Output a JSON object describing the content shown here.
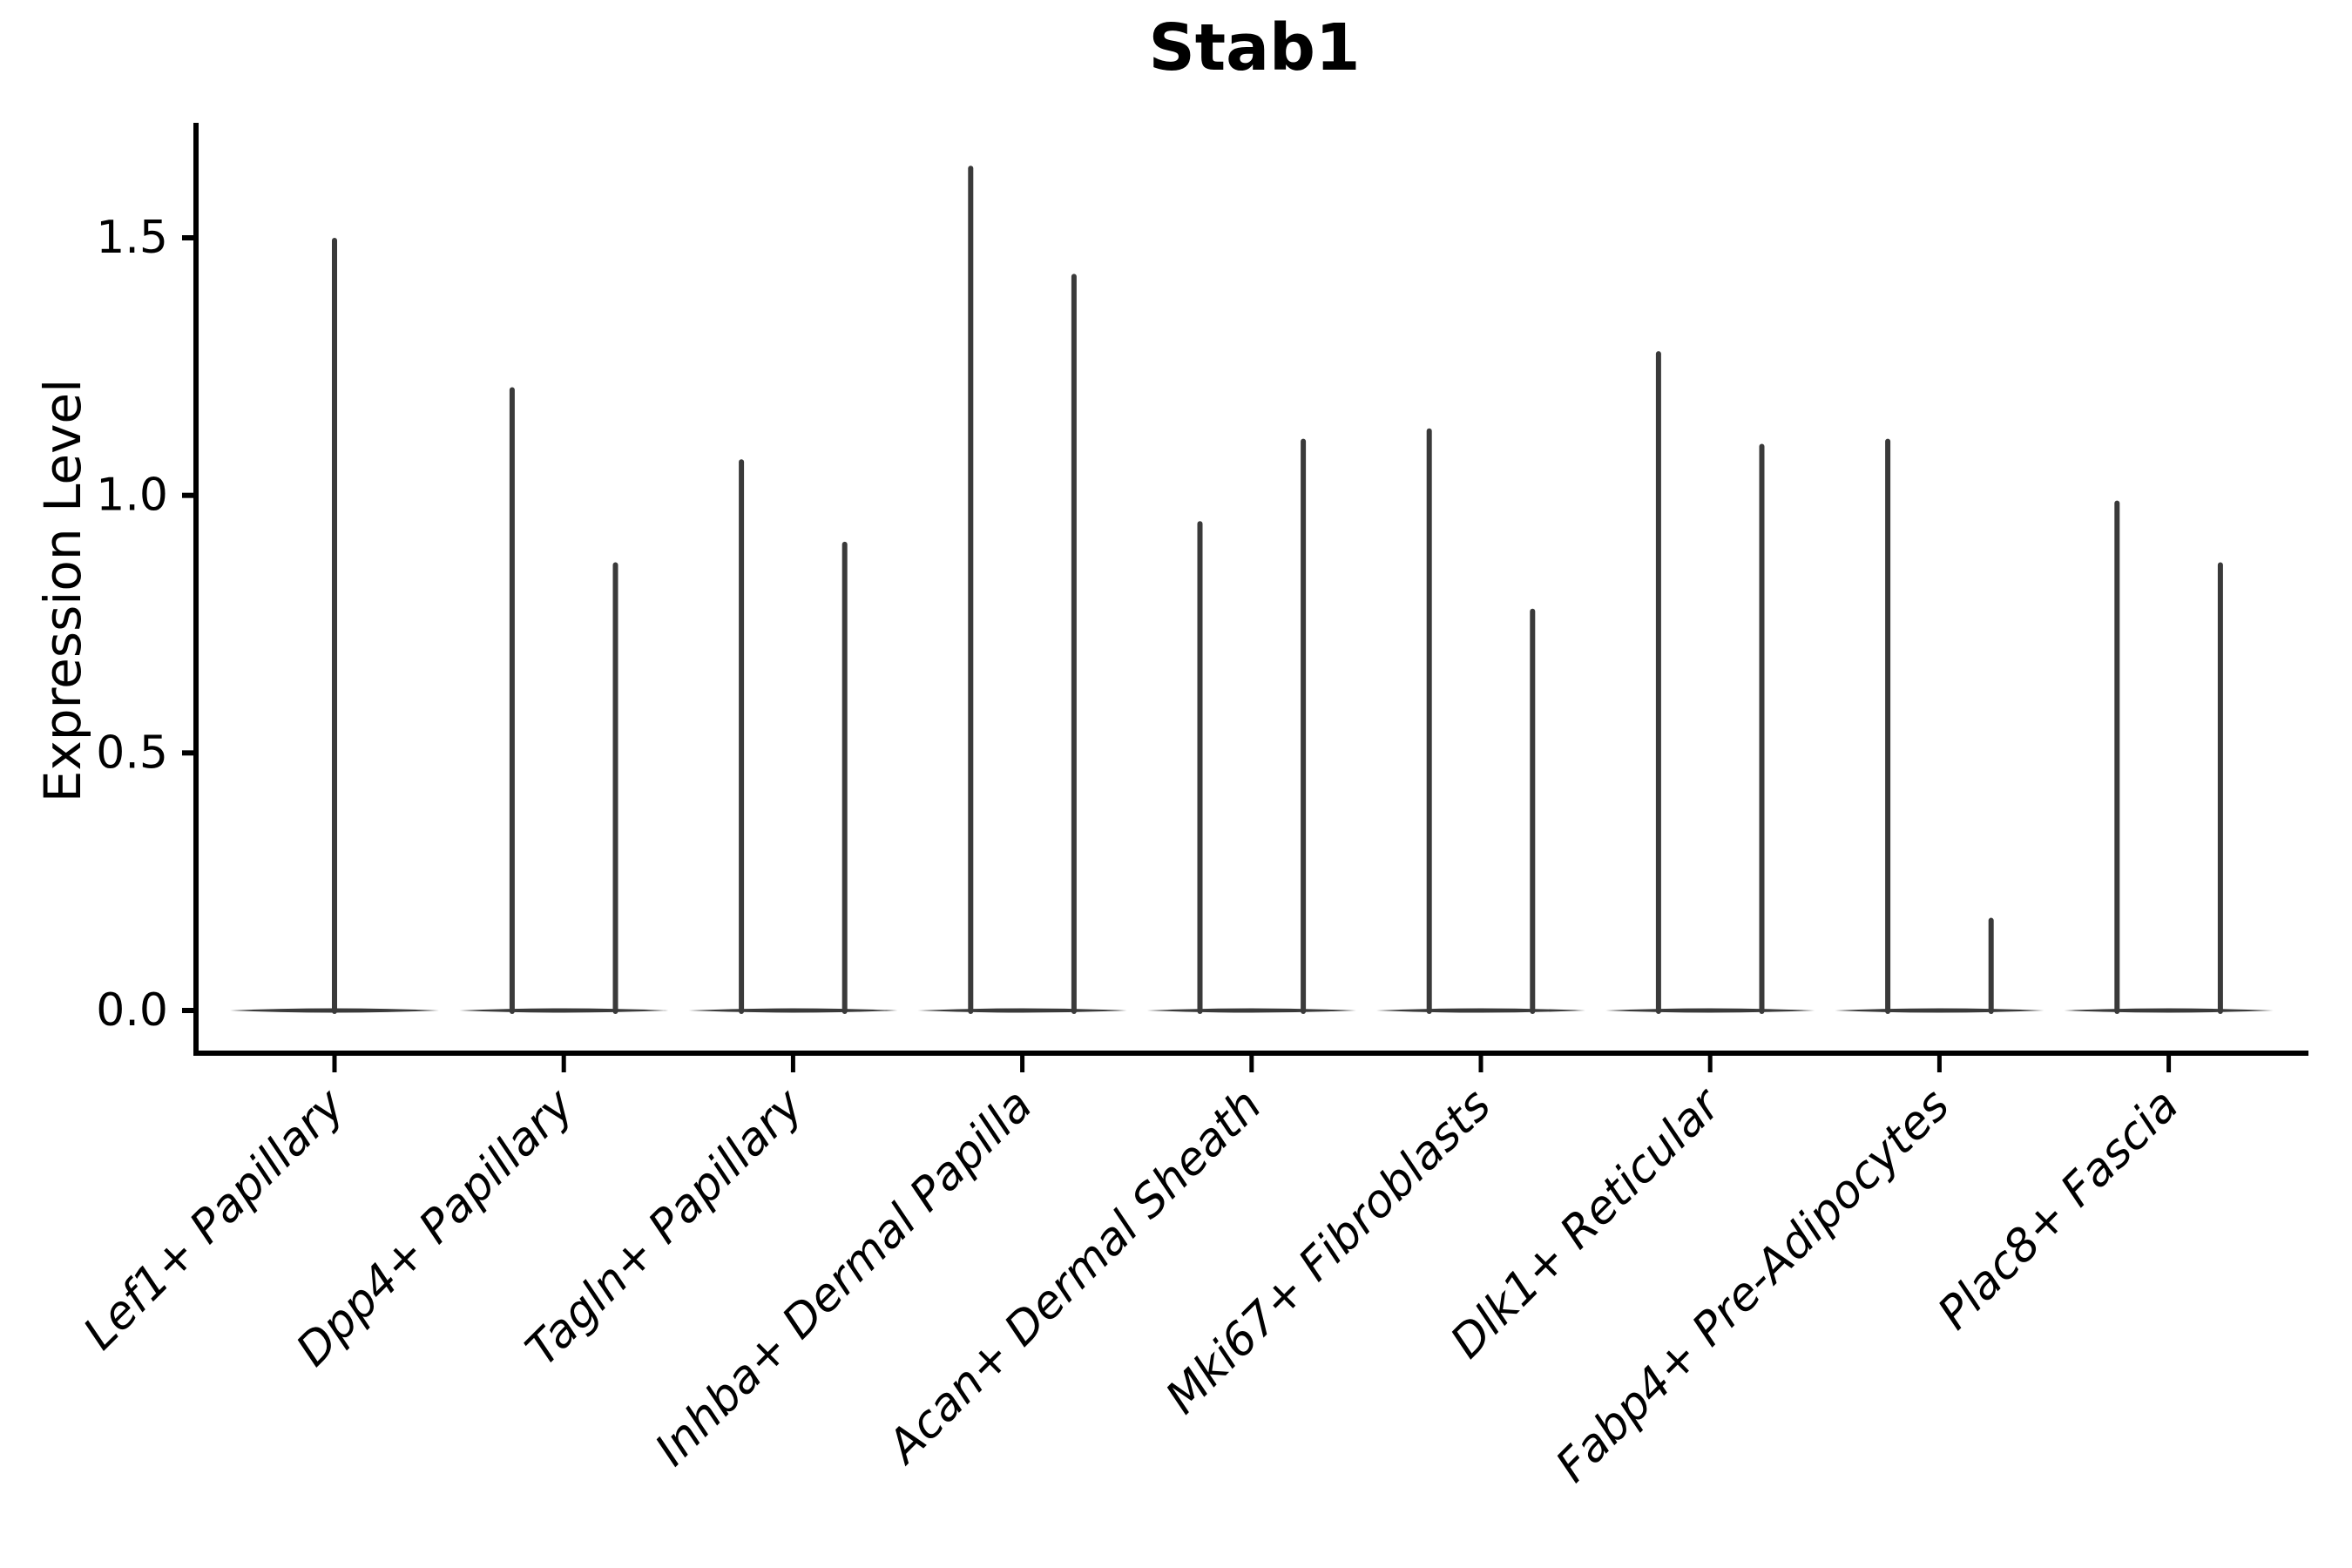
{
  "chart_data": {
    "type": "violin",
    "title": "Stab1",
    "ylabel": "Expression Level",
    "xlabel": "",
    "categories": [
      "Lef1+ Papillary",
      "Dpp4+ Papillary",
      "Tagln+ Papillary",
      "Inhba+ Dermal Papilla",
      "Acan+ Dermal Sheath",
      "Mki67+ Fibroblasts",
      "Dlk1+ Reticular",
      "Fabp4+ Pre-Adipocytes",
      "Plac8+ Fascia"
    ],
    "groups": [
      {
        "category": "Lef1+ Papillary",
        "violin_maxima": [
          1.5
        ]
      },
      {
        "category": "Dpp4+ Papillary",
        "violin_maxima": [
          1.21,
          0.87
        ]
      },
      {
        "category": "Tagln+ Papillary",
        "violin_maxima": [
          1.07,
          0.91
        ]
      },
      {
        "category": "Inhba+ Dermal Papilla",
        "violin_maxima": [
          1.64,
          1.43
        ]
      },
      {
        "category": "Acan+ Dermal Sheath",
        "violin_maxima": [
          0.95,
          1.11
        ]
      },
      {
        "category": "Mki67+ Fibroblasts",
        "violin_maxima": [
          1.13,
          0.78
        ]
      },
      {
        "category": "Dlk1+ Reticular",
        "violin_maxima": [
          1.28,
          1.1
        ]
      },
      {
        "category": "Fabp4+ Pre-Adipocytes",
        "violin_maxima": [
          1.11,
          0.18
        ]
      },
      {
        "category": "Plac8+ Fascia",
        "violin_maxima": [
          0.99,
          0.87
        ]
      }
    ],
    "baseline_value": 0.0,
    "yticks": [
      0.0,
      0.5,
      1.0,
      1.5
    ],
    "ytick_labels": [
      "0.0",
      "0.5",
      "1.0",
      "1.5"
    ],
    "ylim": [
      -0.08,
      1.72
    ],
    "grid": false,
    "legend": "none",
    "colors": {
      "violin": "#3a3a3a",
      "axis": "#000000",
      "text": "#000000",
      "background": "#ffffff"
    }
  }
}
